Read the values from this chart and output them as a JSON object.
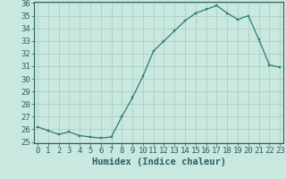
{
  "x": [
    0,
    1,
    2,
    3,
    4,
    5,
    6,
    7,
    8,
    9,
    10,
    11,
    12,
    13,
    14,
    15,
    16,
    17,
    18,
    19,
    20,
    21,
    22,
    23
  ],
  "y": [
    26.2,
    25.9,
    25.6,
    25.8,
    25.5,
    25.4,
    25.3,
    25.4,
    27.0,
    28.5,
    30.2,
    32.2,
    33.0,
    33.8,
    34.6,
    35.2,
    35.5,
    35.8,
    35.2,
    34.7,
    35.0,
    33.1,
    31.1,
    30.9
  ],
  "line_color": "#2e7d6e",
  "marker_color": "#2e7d6e",
  "bg_color": "#c8e8e0",
  "grid_color": "#a8c8c0",
  "xlabel": "Humidex (Indice chaleur)",
  "ylim_min": 25,
  "ylim_max": 36,
  "xlim_min": 0,
  "xlim_max": 23,
  "yticks": [
    25,
    26,
    27,
    28,
    29,
    30,
    31,
    32,
    33,
    34,
    35,
    36
  ],
  "xticks": [
    0,
    1,
    2,
    3,
    4,
    5,
    6,
    7,
    8,
    9,
    10,
    11,
    12,
    13,
    14,
    15,
    16,
    17,
    18,
    19,
    20,
    21,
    22,
    23
  ],
  "font_color": "#2e6060",
  "tick_fontsize": 6.5,
  "xlabel_fontsize": 7.5
}
